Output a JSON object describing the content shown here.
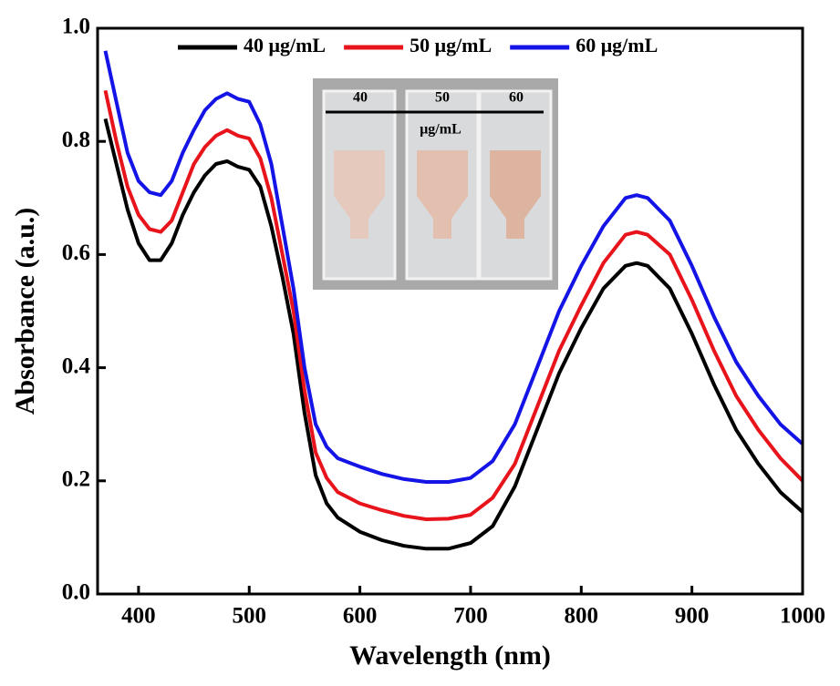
{
  "chart_data": {
    "type": "line",
    "xlabel": "Wavelength (nm)",
    "ylabel": "Absorbance (a.u.)",
    "xlim": [
      363,
      1000
    ],
    "ylim": [
      0,
      1
    ],
    "xticks": [
      400,
      500,
      600,
      700,
      800,
      900,
      1000
    ],
    "yticks": [
      {
        "value": 0,
        "label": "0.0"
      },
      0.2,
      0.4,
      0.6,
      0.8,
      {
        "value": 1,
        "label": "1.0"
      }
    ],
    "x": [
      370,
      380,
      390,
      400,
      410,
      420,
      430,
      440,
      450,
      460,
      470,
      480,
      490,
      500,
      510,
      520,
      530,
      540,
      550,
      560,
      570,
      580,
      600,
      620,
      640,
      660,
      680,
      700,
      720,
      740,
      760,
      780,
      800,
      820,
      840,
      850,
      860,
      880,
      900,
      920,
      940,
      960,
      980,
      1000
    ],
    "series": [
      {
        "name": "40 μg/mL",
        "color": "#000000",
        "values": [
          0.84,
          0.76,
          0.68,
          0.62,
          0.59,
          0.59,
          0.62,
          0.67,
          0.71,
          0.74,
          0.76,
          0.765,
          0.755,
          0.75,
          0.72,
          0.65,
          0.56,
          0.46,
          0.32,
          0.21,
          0.16,
          0.135,
          0.11,
          0.095,
          0.085,
          0.08,
          0.08,
          0.09,
          0.12,
          0.19,
          0.29,
          0.39,
          0.47,
          0.54,
          0.58,
          0.585,
          0.58,
          0.54,
          0.46,
          0.37,
          0.29,
          0.23,
          0.18,
          0.145
        ]
      },
      {
        "name": "50 μg/mL",
        "color": "#e8141c",
        "values": [
          0.89,
          0.8,
          0.72,
          0.67,
          0.645,
          0.64,
          0.66,
          0.71,
          0.76,
          0.79,
          0.81,
          0.82,
          0.81,
          0.805,
          0.77,
          0.7,
          0.6,
          0.5,
          0.36,
          0.25,
          0.205,
          0.18,
          0.16,
          0.148,
          0.138,
          0.132,
          0.133,
          0.14,
          0.17,
          0.23,
          0.33,
          0.43,
          0.51,
          0.585,
          0.635,
          0.64,
          0.635,
          0.6,
          0.52,
          0.43,
          0.35,
          0.29,
          0.24,
          0.2
        ]
      },
      {
        "name": "60 μg/mL",
        "color": "#1414e6",
        "values": [
          0.96,
          0.87,
          0.78,
          0.73,
          0.71,
          0.705,
          0.73,
          0.78,
          0.82,
          0.855,
          0.875,
          0.885,
          0.875,
          0.87,
          0.83,
          0.76,
          0.65,
          0.54,
          0.4,
          0.3,
          0.26,
          0.24,
          0.225,
          0.212,
          0.203,
          0.198,
          0.198,
          0.205,
          0.235,
          0.3,
          0.4,
          0.5,
          0.58,
          0.65,
          0.7,
          0.705,
          0.7,
          0.66,
          0.58,
          0.49,
          0.41,
          0.35,
          0.3,
          0.265
        ]
      }
    ],
    "inset": {
      "labels": [
        "40",
        "50",
        "60"
      ],
      "unit": "μg/mL"
    }
  }
}
